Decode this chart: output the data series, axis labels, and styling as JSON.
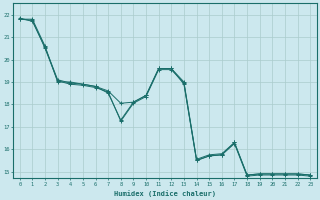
{
  "title": "",
  "xlabel": "Humidex (Indice chaleur)",
  "background_color": "#cce8ee",
  "grid_color": "#aacccc",
  "line_color": "#1a6e6a",
  "xlim": [
    -0.5,
    23.5
  ],
  "ylim": [
    14.7,
    22.5
  ],
  "yticks": [
    15,
    16,
    17,
    18,
    19,
    20,
    21,
    22
  ],
  "xticks": [
    0,
    1,
    2,
    3,
    4,
    5,
    6,
    7,
    8,
    9,
    10,
    11,
    12,
    13,
    14,
    15,
    16,
    17,
    18,
    19,
    20,
    21,
    22,
    23
  ],
  "line1_x": [
    0,
    1,
    2,
    3,
    4,
    5,
    6,
    7,
    8,
    9,
    10,
    11,
    12,
    13,
    14,
    15,
    16,
    17,
    18,
    19,
    20,
    21,
    22,
    23
  ],
  "line1_y": [
    21.8,
    21.8,
    20.6,
    19.0,
    19.0,
    18.9,
    18.8,
    18.5,
    17.3,
    18.1,
    18.4,
    19.6,
    19.6,
    19.0,
    15.55,
    15.75,
    15.8,
    16.3,
    14.85,
    14.9,
    14.9,
    14.9,
    14.9,
    14.85
  ],
  "line2_x": [
    0,
    1,
    2,
    3,
    4,
    5,
    6,
    7,
    8,
    9,
    10,
    11,
    12,
    13,
    14,
    15,
    16,
    17,
    18,
    19,
    20,
    21,
    22,
    23
  ],
  "line2_y": [
    21.8,
    21.75,
    20.5,
    19.05,
    18.9,
    18.85,
    18.75,
    18.55,
    17.25,
    18.05,
    18.35,
    19.55,
    19.55,
    18.95,
    15.5,
    15.7,
    15.75,
    16.25,
    14.8,
    14.85,
    14.85,
    14.85,
    14.85,
    14.8
  ],
  "line3_x": [
    0,
    1,
    2,
    3,
    4,
    5,
    6,
    7,
    8,
    9,
    10,
    11,
    12,
    13,
    14,
    15,
    16,
    17,
    18,
    19,
    20,
    21,
    22,
    23
  ],
  "line3_y": [
    21.85,
    21.7,
    20.55,
    19.1,
    18.95,
    18.9,
    18.8,
    18.6,
    18.05,
    18.1,
    18.4,
    19.6,
    19.6,
    18.9,
    15.5,
    15.7,
    15.75,
    16.3,
    14.85,
    14.9,
    14.9,
    14.9,
    14.9,
    14.85
  ]
}
